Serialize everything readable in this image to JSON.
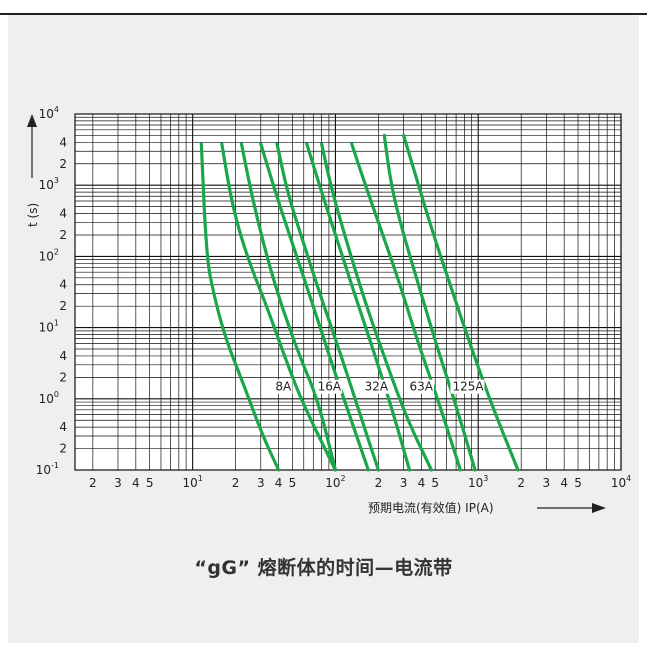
{
  "caption": "“gG” 熔断体的时间—电流带",
  "chart_data": {
    "type": "line",
    "scale": "log-log",
    "title": "“gG” 熔断体的时间—电流带",
    "xlabel": "预期电流(有效值) IP(A)",
    "ylabel": "t (s)",
    "xlim": [
      1.5,
      10000
    ],
    "ylim": [
      0.1,
      10000
    ],
    "grid": true,
    "x_major_ticks": [
      {
        "value": 2,
        "label": "2"
      },
      {
        "value": 3,
        "label": "3"
      },
      {
        "value": 4,
        "label": "4"
      },
      {
        "value": 5,
        "label": "5"
      },
      {
        "value": 10,
        "label": "10",
        "sup": "1"
      },
      {
        "value": 20,
        "label": "2"
      },
      {
        "value": 30,
        "label": "3"
      },
      {
        "value": 40,
        "label": "4"
      },
      {
        "value": 50,
        "label": "5"
      },
      {
        "value": 100,
        "label": "10",
        "sup": "2"
      },
      {
        "value": 200,
        "label": "2"
      },
      {
        "value": 300,
        "label": "3"
      },
      {
        "value": 400,
        "label": "4"
      },
      {
        "value": 500,
        "label": "5"
      },
      {
        "value": 1000,
        "label": "10",
        "sup": "3"
      },
      {
        "value": 2000,
        "label": "2"
      },
      {
        "value": 3000,
        "label": "3"
      },
      {
        "value": 4000,
        "label": "4"
      },
      {
        "value": 5000,
        "label": "5"
      },
      {
        "value": 10000,
        "label": "10",
        "sup": "4"
      }
    ],
    "y_major_ticks": [
      {
        "value": 0.1,
        "label": "10",
        "sup": "-1"
      },
      {
        "value": 0.2,
        "label": "2"
      },
      {
        "value": 0.4,
        "label": "4"
      },
      {
        "value": 1,
        "label": "10",
        "sup": "0"
      },
      {
        "value": 2,
        "label": "2"
      },
      {
        "value": 4,
        "label": "4"
      },
      {
        "value": 10,
        "label": "10",
        "sup": "1"
      },
      {
        "value": 20,
        "label": "2"
      },
      {
        "value": 40,
        "label": "4"
      },
      {
        "value": 100,
        "label": "10",
        "sup": "2"
      },
      {
        "value": 200,
        "label": "2"
      },
      {
        "value": 400,
        "label": "4"
      },
      {
        "value": 1000,
        "label": "10",
        "sup": "3"
      },
      {
        "value": 2000,
        "label": "2"
      },
      {
        "value": 4000,
        "label": "4"
      },
      {
        "value": 10000,
        "label": "10",
        "sup": "4"
      }
    ],
    "series_color": "#1aa64a",
    "band_labels": [
      {
        "text": "8A",
        "x": 38,
        "y": 1.3
      },
      {
        "text": "16A",
        "x": 75,
        "y": 1.3
      },
      {
        "text": "32A",
        "x": 160,
        "y": 1.3
      },
      {
        "text": "63A",
        "x": 330,
        "y": 1.3
      },
      {
        "text": "125A",
        "x": 660,
        "y": 1.3
      }
    ],
    "series": [
      {
        "rating": "8A",
        "bound": "min",
        "points": [
          [
            11.5,
            3800
          ],
          [
            12.5,
            100
          ],
          [
            14,
            30
          ],
          [
            17,
            7
          ],
          [
            23,
            1.5
          ],
          [
            31,
            0.3
          ],
          [
            40,
            0.1
          ]
        ]
      },
      {
        "rating": "8A",
        "bound": "max",
        "points": [
          [
            22,
            3800
          ],
          [
            26,
            700
          ],
          [
            33,
            100
          ],
          [
            42,
            20
          ],
          [
            56,
            4
          ],
          [
            75,
            1
          ],
          [
            100,
            0.1
          ]
        ]
      },
      {
        "rating": "16A",
        "bound": "min",
        "points": [
          [
            16,
            3800
          ],
          [
            19,
            500
          ],
          [
            24,
            100
          ],
          [
            33,
            20
          ],
          [
            45,
            3.5
          ],
          [
            60,
            0.8
          ],
          [
            100,
            0.1
          ]
        ]
      },
      {
        "rating": "16A",
        "bound": "max",
        "points": [
          [
            30,
            3800
          ],
          [
            38,
            800
          ],
          [
            50,
            150
          ],
          [
            70,
            20
          ],
          [
            95,
            3
          ],
          [
            125,
            0.6
          ],
          [
            170,
            0.1
          ]
        ]
      },
      {
        "rating": "32A",
        "bound": "min",
        "points": [
          [
            39,
            3800
          ],
          [
            46,
            800
          ],
          [
            60,
            150
          ],
          [
            80,
            25
          ],
          [
            110,
            4
          ],
          [
            145,
            0.7
          ],
          [
            200,
            0.1
          ]
        ]
      },
      {
        "rating": "32A",
        "bound": "max",
        "points": [
          [
            63,
            3800
          ],
          [
            80,
            800
          ],
          [
            105,
            150
          ],
          [
            140,
            25
          ],
          [
            190,
            4
          ],
          [
            250,
            0.7
          ],
          [
            330,
            0.1
          ]
        ]
      },
      {
        "rating": "63A",
        "bound": "min",
        "points": [
          [
            80,
            3800
          ],
          [
            95,
            800
          ],
          [
            125,
            120
          ],
          [
            165,
            20
          ],
          [
            230,
            3
          ],
          [
            320,
            0.5
          ],
          [
            470,
            0.1
          ]
        ]
      },
      {
        "rating": "63A",
        "bound": "max",
        "points": [
          [
            130,
            3800
          ],
          [
            165,
            900
          ],
          [
            215,
            200
          ],
          [
            290,
            35
          ],
          [
            380,
            6
          ],
          [
            520,
            1
          ],
          [
            750,
            0.1
          ]
        ]
      },
      {
        "rating": "125A",
        "bound": "min",
        "points": [
          [
            220,
            5000
          ],
          [
            245,
            1000
          ],
          [
            300,
            200
          ],
          [
            390,
            35
          ],
          [
            520,
            5
          ],
          [
            700,
            0.8
          ],
          [
            950,
            0.1
          ]
        ]
      },
      {
        "rating": "125A",
        "bound": "max",
        "points": [
          [
            300,
            5000
          ],
          [
            360,
            1500
          ],
          [
            470,
            250
          ],
          [
            650,
            35
          ],
          [
            900,
            5
          ],
          [
            1250,
            0.8
          ],
          [
            1900,
            0.1
          ]
        ]
      }
    ]
  }
}
